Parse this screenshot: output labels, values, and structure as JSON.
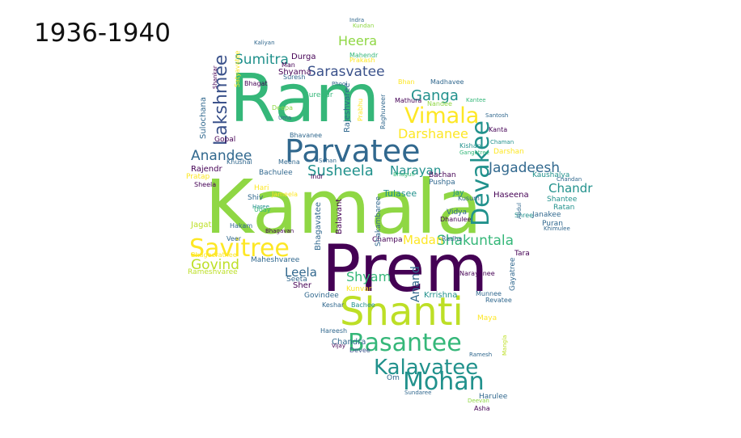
{
  "title": "1936-1940",
  "palette": {
    "dark_purple": "#440154",
    "indigo": "#3b528b",
    "blue": "#31688e",
    "teal": "#21918c",
    "green": "#35b779",
    "light_green": "#8fd744",
    "yellow_green": "#bddf26",
    "yellow": "#fde725"
  },
  "words": [
    {
      "text": "Kamala",
      "color": "#8fd744"
    },
    {
      "text": "Prem",
      "color": "#440154"
    },
    {
      "text": "Ram",
      "color": "#35b779"
    },
    {
      "text": "Parvatee",
      "color": "#31688e"
    },
    {
      "text": "Shanti",
      "color": "#bddf26"
    },
    {
      "text": "Savitree",
      "color": "#fde725"
    },
    {
      "text": "Basantee",
      "color": "#35b779"
    },
    {
      "text": "Devakee",
      "color": "#21918c"
    },
    {
      "text": "Mohan",
      "color": "#21918c"
    },
    {
      "text": "Kalavatee",
      "color": "#21918c"
    },
    {
      "text": "Vimala",
      "color": "#fde725"
    },
    {
      "text": "Lakshmee",
      "color": "#3b528b"
    },
    {
      "text": "Susheela",
      "color": "#21918c"
    },
    {
      "text": "Shakuntala",
      "color": "#35b779"
    },
    {
      "text": "Sarasvatee",
      "color": "#3b528b"
    },
    {
      "text": "Jagadeesh",
      "color": "#31688e"
    },
    {
      "text": "Anandee",
      "color": "#31688e"
    },
    {
      "text": "Govind",
      "color": "#bddf26"
    },
    {
      "text": "Sumitra",
      "color": "#21918c"
    },
    {
      "text": "Heera",
      "color": "#8fd744"
    },
    {
      "text": "Ganga",
      "color": "#21918c"
    },
    {
      "text": "Darshanee",
      "color": "#fde725"
    },
    {
      "text": "Narayan",
      "color": "#21918c"
    },
    {
      "text": "Chandr",
      "color": "#21918c"
    },
    {
      "text": "Madan",
      "color": "#fde725"
    },
    {
      "text": "Leela",
      "color": "#31688e"
    },
    {
      "text": "Shyam",
      "color": "#35b779"
    },
    {
      "text": "Anand",
      "color": "#31688e"
    },
    {
      "text": "Durga",
      "color": "#440154"
    },
    {
      "text": "Shyama",
      "color": "#440154"
    },
    {
      "text": "Sulochana",
      "color": "#31688e"
    },
    {
      "text": "Rajeshvaree",
      "color": "#31688e"
    },
    {
      "text": "Gopal",
      "color": "#440154"
    },
    {
      "text": "Rajendr",
      "color": "#440154"
    },
    {
      "text": "Bachulee",
      "color": "#31688e"
    },
    {
      "text": "Pratap",
      "color": "#fde725"
    },
    {
      "text": "Tulasee",
      "color": "#21918c"
    },
    {
      "text": "Haseena",
      "color": "#440154"
    },
    {
      "text": "Balavant",
      "color": "#440154"
    },
    {
      "text": "Pushpa",
      "color": "#31688e"
    },
    {
      "text": "Bachan",
      "color": "#440154"
    },
    {
      "text": "Kaushalya",
      "color": "#21918c"
    },
    {
      "text": "Shantee",
      "color": "#21918c"
    },
    {
      "text": "Janakee",
      "color": "#31688e"
    },
    {
      "text": "Ratan",
      "color": "#21918c"
    },
    {
      "text": "Puran",
      "color": "#31688e"
    },
    {
      "text": "Shree",
      "color": "#21918c"
    },
    {
      "text": "Jagat",
      "color": "#bddf26"
    },
    {
      "text": "Hakam",
      "color": "#31688e"
    },
    {
      "text": "Maheshvaree",
      "color": "#31688e"
    },
    {
      "text": "Rameshvaree",
      "color": "#bddf26"
    },
    {
      "text": "Seeta",
      "color": "#31688e"
    },
    {
      "text": "Sher",
      "color": "#440154"
    },
    {
      "text": "Govindee",
      "color": "#31688e"
    },
    {
      "text": "Kunvar",
      "color": "#fde725"
    },
    {
      "text": "Champa",
      "color": "#440154"
    },
    {
      "text": "Radha",
      "color": "#31688e"
    },
    {
      "text": "Tara",
      "color": "#440154"
    },
    {
      "text": "Gayatree",
      "color": "#31688e"
    },
    {
      "text": "Krrishna",
      "color": "#21918c"
    },
    {
      "text": "Narayanee",
      "color": "#440154"
    },
    {
      "text": "Munnee",
      "color": "#31688e"
    },
    {
      "text": "Revatee",
      "color": "#31688e"
    },
    {
      "text": "Maya",
      "color": "#fde725"
    },
    {
      "text": "Chandra",
      "color": "#31688e"
    },
    {
      "text": "Hareesh",
      "color": "#31688e"
    },
    {
      "text": "Vijay",
      "color": "#440154"
    },
    {
      "text": "Devee",
      "color": "#3b528b"
    },
    {
      "text": "Om",
      "color": "#31688e"
    },
    {
      "text": "Ramesh",
      "color": "#31688e"
    },
    {
      "text": "Harulee",
      "color": "#31688e"
    },
    {
      "text": "Deevan",
      "color": "#8fd744"
    },
    {
      "text": "Asha",
      "color": "#440154"
    },
    {
      "text": "Sundaree",
      "color": "#31688e"
    },
    {
      "text": "Bachee",
      "color": "#21918c"
    },
    {
      "text": "Keshar",
      "color": "#31688e"
    },
    {
      "text": "Vidya",
      "color": "#31688e"
    },
    {
      "text": "Dhanulee",
      "color": "#440154"
    },
    {
      "text": "Jay",
      "color": "#21918c"
    },
    {
      "text": "Hari",
      "color": "#fde725"
    },
    {
      "text": "Jameela",
      "color": "#fde725"
    },
    {
      "text": "Shiv",
      "color": "#31688e"
    },
    {
      "text": "Indr",
      "color": "#440154"
    },
    {
      "text": "Veer",
      "color": "#31688e"
    },
    {
      "text": "Sheela",
      "color": "#440154"
    },
    {
      "text": "Bhagavan",
      "color": "#440154"
    },
    {
      "text": "Kishan",
      "color": "#21918c"
    },
    {
      "text": "Darshan",
      "color": "#fde725"
    },
    {
      "text": "Gangotree",
      "color": "#35b779"
    },
    {
      "text": "Kanta",
      "color": "#440154"
    },
    {
      "text": "Santosh",
      "color": "#31688e"
    },
    {
      "text": "Chaman",
      "color": "#21918c"
    },
    {
      "text": "Madhavee",
      "color": "#31688e"
    },
    {
      "text": "Mathura",
      "color": "#440154"
    },
    {
      "text": "Nandee",
      "color": "#8fd744"
    },
    {
      "text": "Bhan",
      "color": "#fde725"
    },
    {
      "text": "Surendr",
      "color": "#35b779"
    },
    {
      "text": "Suresh",
      "color": "#31688e"
    },
    {
      "text": "Bhagat",
      "color": "#440154"
    },
    {
      "text": "Mahendr",
      "color": "#35b779"
    },
    {
      "text": "Prakash",
      "color": "#fde725"
    },
    {
      "text": "Man",
      "color": "#440154"
    },
    {
      "text": "Kundan",
      "color": "#8fd744"
    },
    {
      "text": "Indra",
      "color": "#31688e"
    },
    {
      "text": "Deepa",
      "color": "#8fd744"
    },
    {
      "text": "Uma",
      "color": "#31688e"
    },
    {
      "text": "Khushal",
      "color": "#31688e"
    },
    {
      "text": "Meena",
      "color": "#31688e"
    },
    {
      "text": "Kusum",
      "color": "#31688e"
    },
    {
      "text": "Haree",
      "color": "#21918c"
    },
    {
      "text": "Chandan",
      "color": "#31688e"
    },
    {
      "text": "Bhageerathee",
      "color": "#fde725"
    },
    {
      "text": "Phool",
      "color": "#31688e"
    },
    {
      "text": "Shakambaree",
      "color": "#31688e"
    },
    {
      "text": "Bhagavatee",
      "color": "#31688e"
    },
    {
      "text": "Raghuveer",
      "color": "#31688e"
    },
    {
      "text": "Prabhu",
      "color": "#fde725"
    },
    {
      "text": "Bhavanee",
      "color": "#31688e"
    },
    {
      "text": "Satyavatee",
      "color": "#fde725"
    },
    {
      "text": "Shankar",
      "color": "#440154"
    },
    {
      "text": "Uday",
      "color": "#35b779"
    },
    {
      "text": "Kantee",
      "color": "#35b779"
    },
    {
      "text": "Sohan",
      "color": "#31688e"
    },
    {
      "text": "Khimulee",
      "color": "#31688e"
    },
    {
      "text": "Bhaguli",
      "color": "#35b779"
    },
    {
      "text": "Abdul",
      "color": "#31688e"
    },
    {
      "text": "Mangla",
      "color": "#bddf26"
    },
    {
      "text": "Kaliyan",
      "color": "#31688e"
    }
  ]
}
